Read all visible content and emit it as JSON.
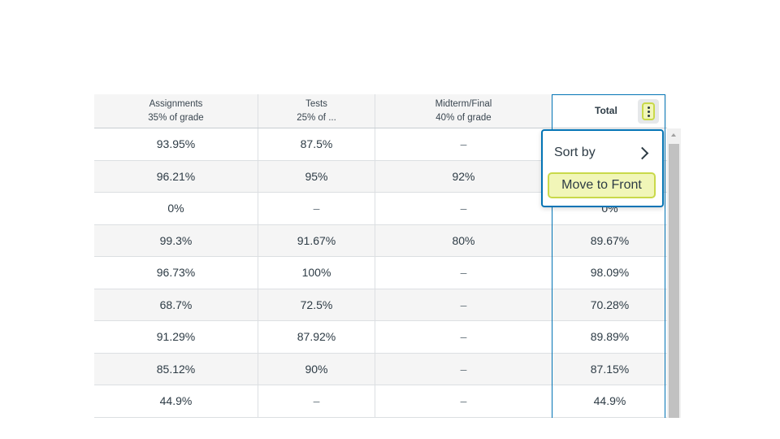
{
  "grid": {
    "columns": [
      {
        "title": "Assignments",
        "subtitle": "35% of grade"
      },
      {
        "title": "Tests",
        "subtitle": "25% of ..."
      },
      {
        "title": "Midterm/Final",
        "subtitle": "40% of grade"
      },
      {
        "title": "Total"
      }
    ],
    "rows": [
      [
        "93.95%",
        "87.5%",
        "–",
        ""
      ],
      [
        "96.21%",
        "95%",
        "92%",
        ""
      ],
      [
        "0%",
        "–",
        "–",
        "0%"
      ],
      [
        "99.3%",
        "91.67%",
        "80%",
        "89.67%"
      ],
      [
        "96.73%",
        "100%",
        "–",
        "98.09%"
      ],
      [
        "68.7%",
        "72.5%",
        "–",
        "70.28%"
      ],
      [
        "91.29%",
        "87.92%",
        "–",
        "89.89%"
      ],
      [
        "85.12%",
        "90%",
        "–",
        "87.15%"
      ],
      [
        "44.9%",
        "–",
        "–",
        "44.9%"
      ]
    ]
  },
  "menu": {
    "sort_by_label": "Sort by",
    "move_to_front_label": "Move to Front"
  },
  "icons": {
    "kebab": "kebab-menu-icon",
    "chevron": "chevron-right-icon",
    "scroll_up": "scroll-up-arrow-icon"
  },
  "colors": {
    "accent_blue": "#0374b5",
    "focus_yellow_bg": "#f1f6b8",
    "focus_yellow_border": "#c9d94a",
    "alt_row": "#f5f5f5"
  }
}
